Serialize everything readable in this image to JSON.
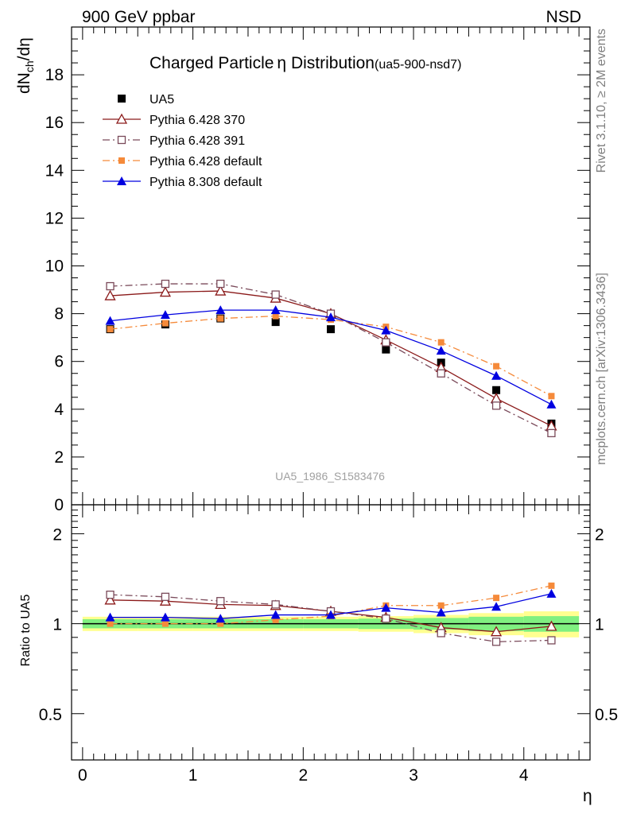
{
  "header": {
    "left": "900 GeV ppbar",
    "right": "NSD"
  },
  "title": {
    "main": "Charged Particle",
    "eta": "η",
    "rest": " Distribution",
    "tag": "(ua5-900-nsd7)"
  },
  "ylabel": {
    "d1": "dN",
    "sub": "ch",
    "slash": "/d",
    "eta": "η"
  },
  "ratio_ylabel": "Ratio to UA5",
  "xlabel": "η",
  "side_text": {
    "top": "Rivet 3.1.10, ≥ 2M events",
    "bottom": "mcplots.cern.ch [arXiv:1306.3436]"
  },
  "watermark": "UA5_1986_S1583476",
  "colors": {
    "ua5": "#000000",
    "p370": "#8b1a1a",
    "p391": "#7a4a5a",
    "p6def": "#f58a3a",
    "p8def": "#0000e0",
    "band_green": "#80f080",
    "band_yellow": "#ffff90"
  },
  "chart_data": [
    {
      "type": "line",
      "x": [
        0.25,
        0.75,
        1.25,
        1.75,
        2.25,
        2.75,
        3.25,
        3.75,
        4.25
      ],
      "xlim": [
        -0.1,
        4.6
      ],
      "ylim": [
        0,
        20
      ],
      "yticks": [
        0,
        2,
        4,
        6,
        8,
        10,
        12,
        14,
        16,
        18
      ],
      "ytick_labels": [
        "0",
        "2",
        "4",
        "6",
        "8",
        "10",
        "12",
        "14",
        "16",
        "18"
      ],
      "series": [
        {
          "name": "UA5",
          "marker": "square-filled",
          "line": "none",
          "values": [
            7.35,
            7.55,
            7.8,
            7.65,
            7.35,
            6.5,
            5.95,
            4.8,
            3.4
          ]
        },
        {
          "name": "Pythia 6.428 370",
          "marker": "triangle-open",
          "line": "solid",
          "values": [
            8.75,
            8.9,
            8.95,
            8.65,
            8.0,
            6.9,
            5.75,
            4.45,
            3.3
          ]
        },
        {
          "name": "Pythia 6.428 391",
          "marker": "square-open",
          "line": "dashdot",
          "values": [
            9.15,
            9.25,
            9.25,
            8.8,
            8.0,
            6.8,
            5.5,
            4.15,
            3.0
          ]
        },
        {
          "name": "Pythia 6.428 default",
          "marker": "square-small",
          "line": "dashdot",
          "values": [
            7.35,
            7.6,
            7.8,
            7.9,
            7.75,
            7.45,
            6.8,
            5.8,
            4.55
          ]
        },
        {
          "name": "Pythia 8.308 default",
          "marker": "triangle-filled",
          "line": "solid",
          "values": [
            7.7,
            7.95,
            8.15,
            8.15,
            7.85,
            7.3,
            6.45,
            5.4,
            4.2
          ]
        }
      ]
    },
    {
      "type": "line",
      "x": [
        0.25,
        0.75,
        1.25,
        1.75,
        2.25,
        2.75,
        3.25,
        3.75,
        4.25
      ],
      "xticks": [
        0,
        1,
        2,
        3,
        4
      ],
      "xtick_labels": [
        "0",
        "1",
        "2",
        "3",
        "4"
      ],
      "yscale": "log",
      "ylim": [
        0.35,
        2.5
      ],
      "yticks": [
        0.5,
        1,
        2
      ],
      "ytick_labels": [
        "0.5",
        "1",
        "2"
      ],
      "reference": 1,
      "bands": {
        "edges": [
          0,
          0.5,
          1.0,
          1.5,
          2.0,
          2.5,
          3.0,
          3.5,
          4.0,
          4.5
        ],
        "green": [
          0.035,
          0.035,
          0.035,
          0.035,
          0.035,
          0.04,
          0.045,
          0.055,
          0.06
        ],
        "yellow": [
          0.055,
          0.055,
          0.055,
          0.055,
          0.055,
          0.06,
          0.07,
          0.085,
          0.1
        ]
      },
      "series": [
        {
          "name": "Pythia 6.428 370",
          "values": [
            1.2,
            1.19,
            1.16,
            1.15,
            1.1,
            1.05,
            0.97,
            0.94,
            0.98
          ]
        },
        {
          "name": "Pythia 6.428 391",
          "values": [
            1.25,
            1.23,
            1.19,
            1.16,
            1.1,
            1.04,
            0.93,
            0.87,
            0.88
          ]
        },
        {
          "name": "Pythia 6.428 default",
          "values": [
            1.0,
            1.0,
            1.0,
            1.03,
            1.06,
            1.15,
            1.15,
            1.22,
            1.34
          ]
        },
        {
          "name": "Pythia 8.308 default",
          "values": [
            1.05,
            1.05,
            1.04,
            1.07,
            1.07,
            1.13,
            1.09,
            1.14,
            1.26
          ]
        }
      ]
    }
  ]
}
